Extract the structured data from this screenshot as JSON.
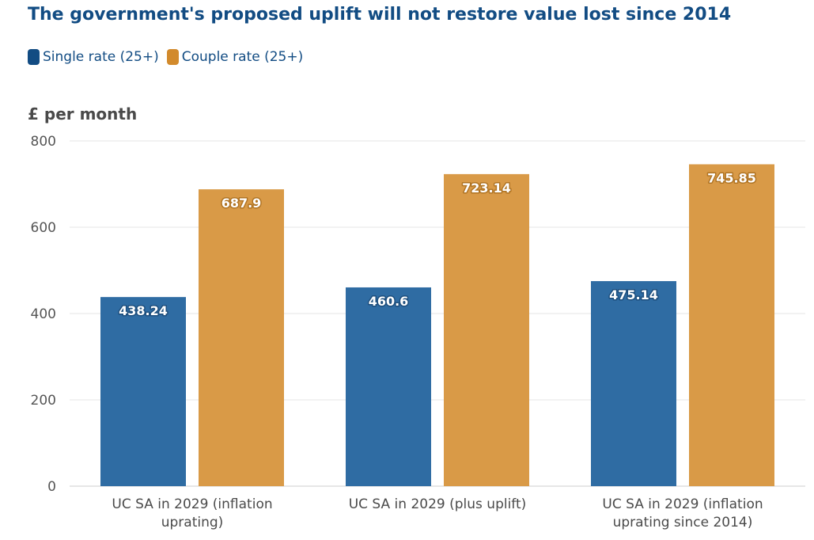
{
  "chart_data": {
    "type": "bar",
    "title": "The government's proposed uplift will not restore value lost since 2014",
    "ylabel": "£ per month",
    "xlabel": "",
    "categories": [
      [
        "UC SA in 2029 (inflation",
        "uprating)"
      ],
      [
        "UC SA in 2029 (plus uplift)"
      ],
      [
        "UC SA in 2029 (inflation",
        "uprating since 2014)"
      ]
    ],
    "series": [
      {
        "name": "Single rate (25+)",
        "color": "#2f6ca3",
        "label_stroke": "#1d4e7d",
        "values": [
          438.24,
          460.6,
          475.14
        ]
      },
      {
        "name": "Couple rate (25+)",
        "color": "#d99a47",
        "label_stroke": "#b07424",
        "values": [
          687.9,
          723.14,
          745.85
        ]
      }
    ],
    "ylim": [
      0,
      800
    ],
    "yticks": [
      0,
      200,
      400,
      600,
      800
    ],
    "grid": true,
    "legend_position": "top-left"
  }
}
